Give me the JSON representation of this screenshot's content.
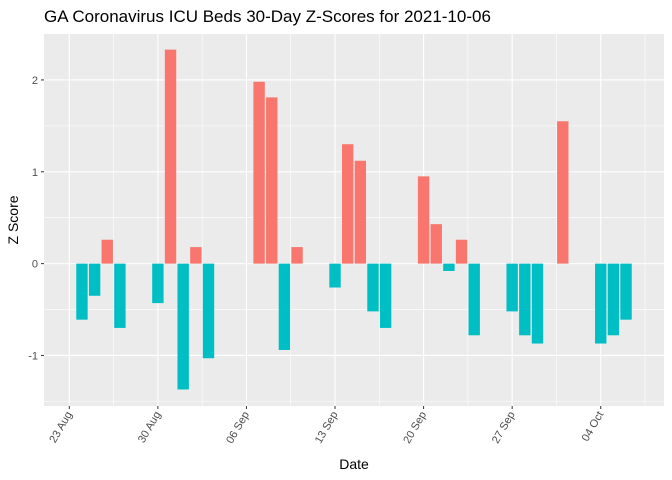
{
  "chart_data": {
    "type": "bar",
    "title": "GA Coronavirus ICU Beds 30-Day Z-Scores for 2021-10-06",
    "xlabel": "Date",
    "ylabel": "Z Score",
    "ylim": [
      -1.55,
      2.5
    ],
    "xlim": [
      "2021-08-21",
      "2021-10-09"
    ],
    "yticks": [
      -1,
      0,
      1,
      2
    ],
    "ytick_labels": [
      "-1",
      "0",
      "1",
      "2"
    ],
    "xticks": [
      "2021-08-23",
      "2021-08-30",
      "2021-09-06",
      "2021-09-13",
      "2021-09-20",
      "2021-09-27",
      "2021-10-04"
    ],
    "xtick_labels": [
      "23 Aug",
      "30 Aug",
      "06 Sep",
      "13 Sep",
      "20 Sep",
      "27 Sep",
      "04 Oct"
    ],
    "grid": true,
    "legend": "none",
    "positive_color": "#F8766D",
    "negative_color": "#00BFC4",
    "panel_color": "#EBEBEB",
    "data": [
      {
        "x": "2021-08-24",
        "y": -0.61
      },
      {
        "x": "2021-08-25",
        "y": -0.35
      },
      {
        "x": "2021-08-26",
        "y": 0.26
      },
      {
        "x": "2021-08-27",
        "y": -0.7
      },
      {
        "x": "2021-08-30",
        "y": -0.43
      },
      {
        "x": "2021-08-31",
        "y": 2.33
      },
      {
        "x": "2021-09-01",
        "y": -1.37
      },
      {
        "x": "2021-09-02",
        "y": 0.18
      },
      {
        "x": "2021-09-03",
        "y": -1.03
      },
      {
        "x": "2021-09-07",
        "y": 1.98
      },
      {
        "x": "2021-09-08",
        "y": 1.81
      },
      {
        "x": "2021-09-09",
        "y": -0.94
      },
      {
        "x": "2021-09-10",
        "y": 0.18
      },
      {
        "x": "2021-09-13",
        "y": -0.26
      },
      {
        "x": "2021-09-14",
        "y": 1.3
      },
      {
        "x": "2021-09-15",
        "y": 1.12
      },
      {
        "x": "2021-09-16",
        "y": -0.52
      },
      {
        "x": "2021-09-17",
        "y": -0.7
      },
      {
        "x": "2021-09-20",
        "y": 0.95
      },
      {
        "x": "2021-09-21",
        "y": 0.43
      },
      {
        "x": "2021-09-22",
        "y": -0.08
      },
      {
        "x": "2021-09-23",
        "y": 0.26
      },
      {
        "x": "2021-09-24",
        "y": -0.78
      },
      {
        "x": "2021-09-27",
        "y": -0.52
      },
      {
        "x": "2021-09-28",
        "y": -0.78
      },
      {
        "x": "2021-09-29",
        "y": -0.87
      },
      {
        "x": "2021-10-01",
        "y": 1.55
      },
      {
        "x": "2021-10-04",
        "y": -0.87
      },
      {
        "x": "2021-10-05",
        "y": -0.78
      },
      {
        "x": "2021-10-06",
        "y": -0.61
      }
    ]
  }
}
